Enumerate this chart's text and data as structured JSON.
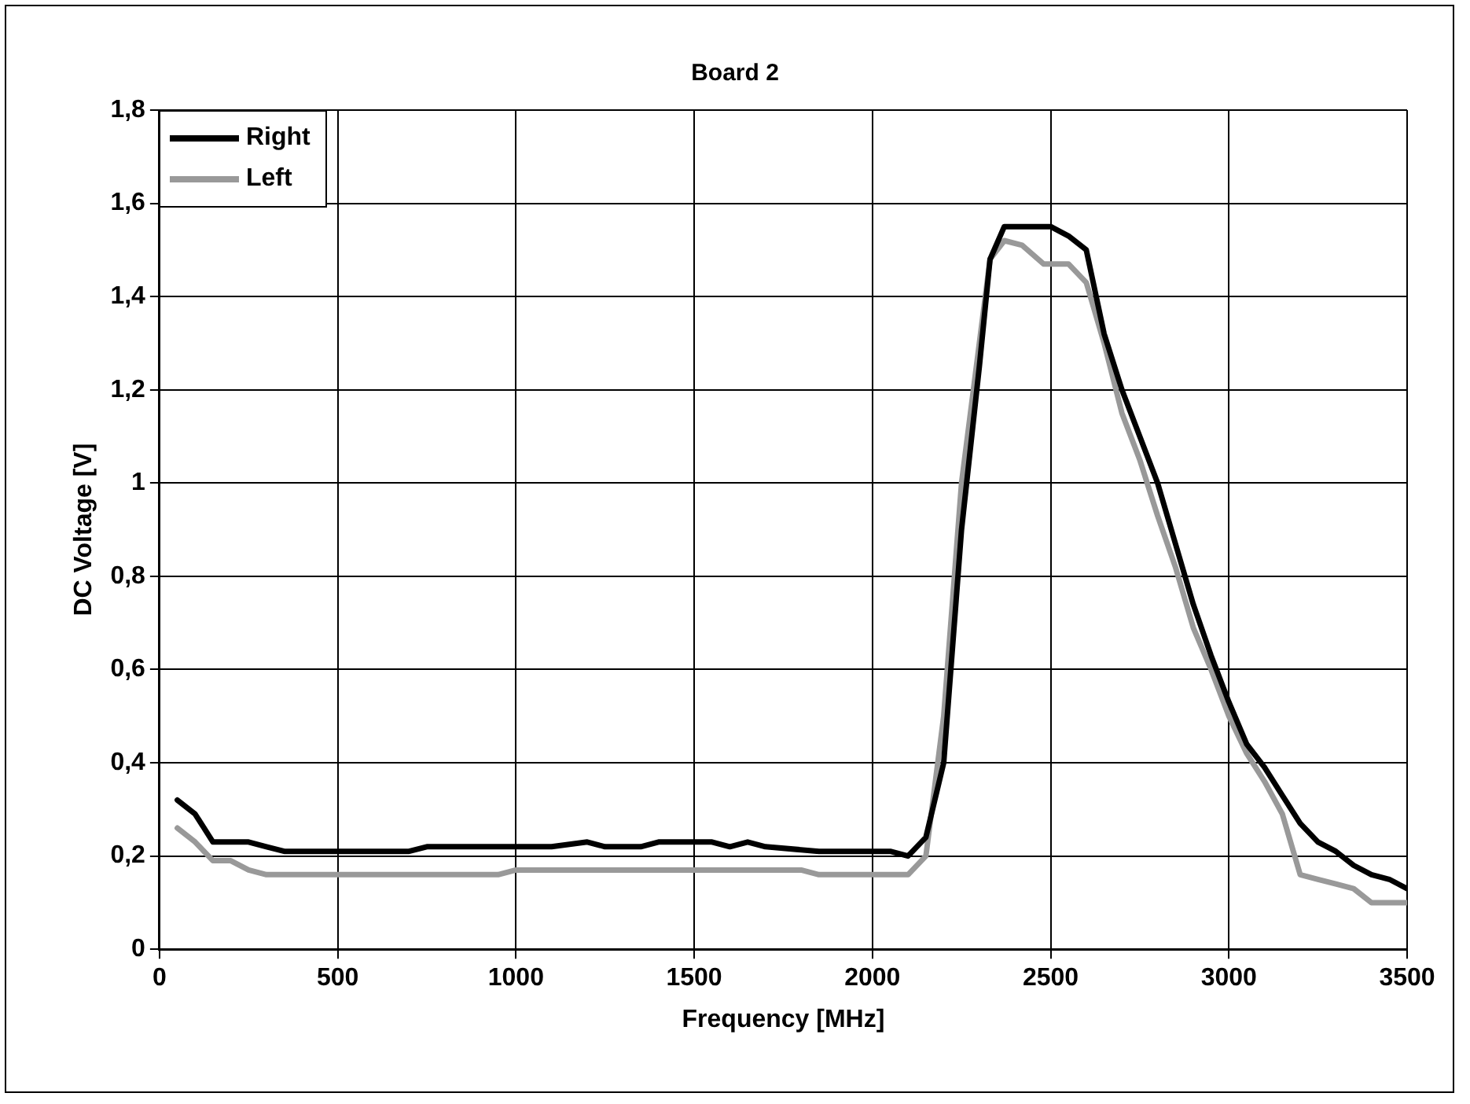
{
  "chart_data": {
    "type": "line",
    "title": "Board 2",
    "xlabel": "Frequency [MHz]",
    "ylabel": "DC Voltage [V]",
    "xlim": [
      0,
      3500
    ],
    "xticks": [
      0,
      500,
      1000,
      1500,
      2000,
      2500,
      3000,
      3500
    ],
    "ylim": [
      0,
      1.8
    ],
    "yticks": [
      0,
      {
        "value": 0.2,
        "label": "0,2"
      },
      {
        "value": 0.4,
        "label": "0,4"
      },
      {
        "value": 0.6,
        "label": "0,6"
      },
      {
        "value": 0.8,
        "label": "0,8"
      },
      1,
      {
        "value": 1.2,
        "label": "1,2"
      },
      {
        "value": 1.4,
        "label": "1,4"
      },
      {
        "value": 1.6,
        "label": "1,6"
      },
      {
        "value": 1.8,
        "label": "1,8"
      }
    ],
    "grid": true,
    "legend": "top left",
    "marker": "none",
    "line_style": "solid",
    "series": [
      {
        "name": "Right",
        "color": "#000000",
        "x": [
          50,
          100,
          150,
          250,
          300,
          350,
          700,
          750,
          1100,
          1200,
          1250,
          1350,
          1400,
          1550,
          1600,
          1650,
          1700,
          1850,
          2050,
          2100,
          2150,
          2200,
          2250,
          2300,
          2330,
          2370,
          2500,
          2550,
          2600,
          2650,
          2700,
          2750,
          2800,
          2850,
          2900,
          2950,
          3000,
          3050,
          3100,
          3150,
          3200,
          3250,
          3300,
          3350,
          3400,
          3450,
          3500
        ],
        "values": [
          0.32,
          0.29,
          0.23,
          0.23,
          0.22,
          0.21,
          0.21,
          0.22,
          0.22,
          0.23,
          0.22,
          0.22,
          0.23,
          0.23,
          0.22,
          0.23,
          0.22,
          0.21,
          0.21,
          0.2,
          0.24,
          0.4,
          0.9,
          1.25,
          1.48,
          1.55,
          1.55,
          1.53,
          1.5,
          1.32,
          1.2,
          1.1,
          1,
          0.87,
          0.74,
          0.63,
          0.53,
          0.44,
          0.39,
          0.33,
          0.27,
          0.23,
          0.21,
          0.18,
          0.16,
          0.15,
          0.13
        ]
      },
      {
        "name": "Left",
        "color": "#999999",
        "x": [
          50,
          100,
          150,
          200,
          250,
          300,
          950,
          1000,
          1800,
          1850,
          2100,
          2150,
          2200,
          2250,
          2300,
          2330,
          2370,
          2420,
          2480,
          2550,
          2600,
          2650,
          2700,
          2750,
          2800,
          2850,
          2900,
          2950,
          3000,
          3050,
          3100,
          3150,
          3200,
          3250,
          3300,
          3350,
          3400,
          3500
        ],
        "values": [
          0.26,
          0.23,
          0.19,
          0.19,
          0.17,
          0.16,
          0.16,
          0.17,
          0.17,
          0.16,
          0.16,
          0.2,
          0.5,
          1,
          1.3,
          1.48,
          1.52,
          1.51,
          1.47,
          1.47,
          1.43,
          1.3,
          1.15,
          1.05,
          0.93,
          0.82,
          0.69,
          0.6,
          0.5,
          0.42,
          0.36,
          0.29,
          0.16,
          0.15,
          0.14,
          0.13,
          0.1,
          0.1
        ]
      }
    ]
  }
}
